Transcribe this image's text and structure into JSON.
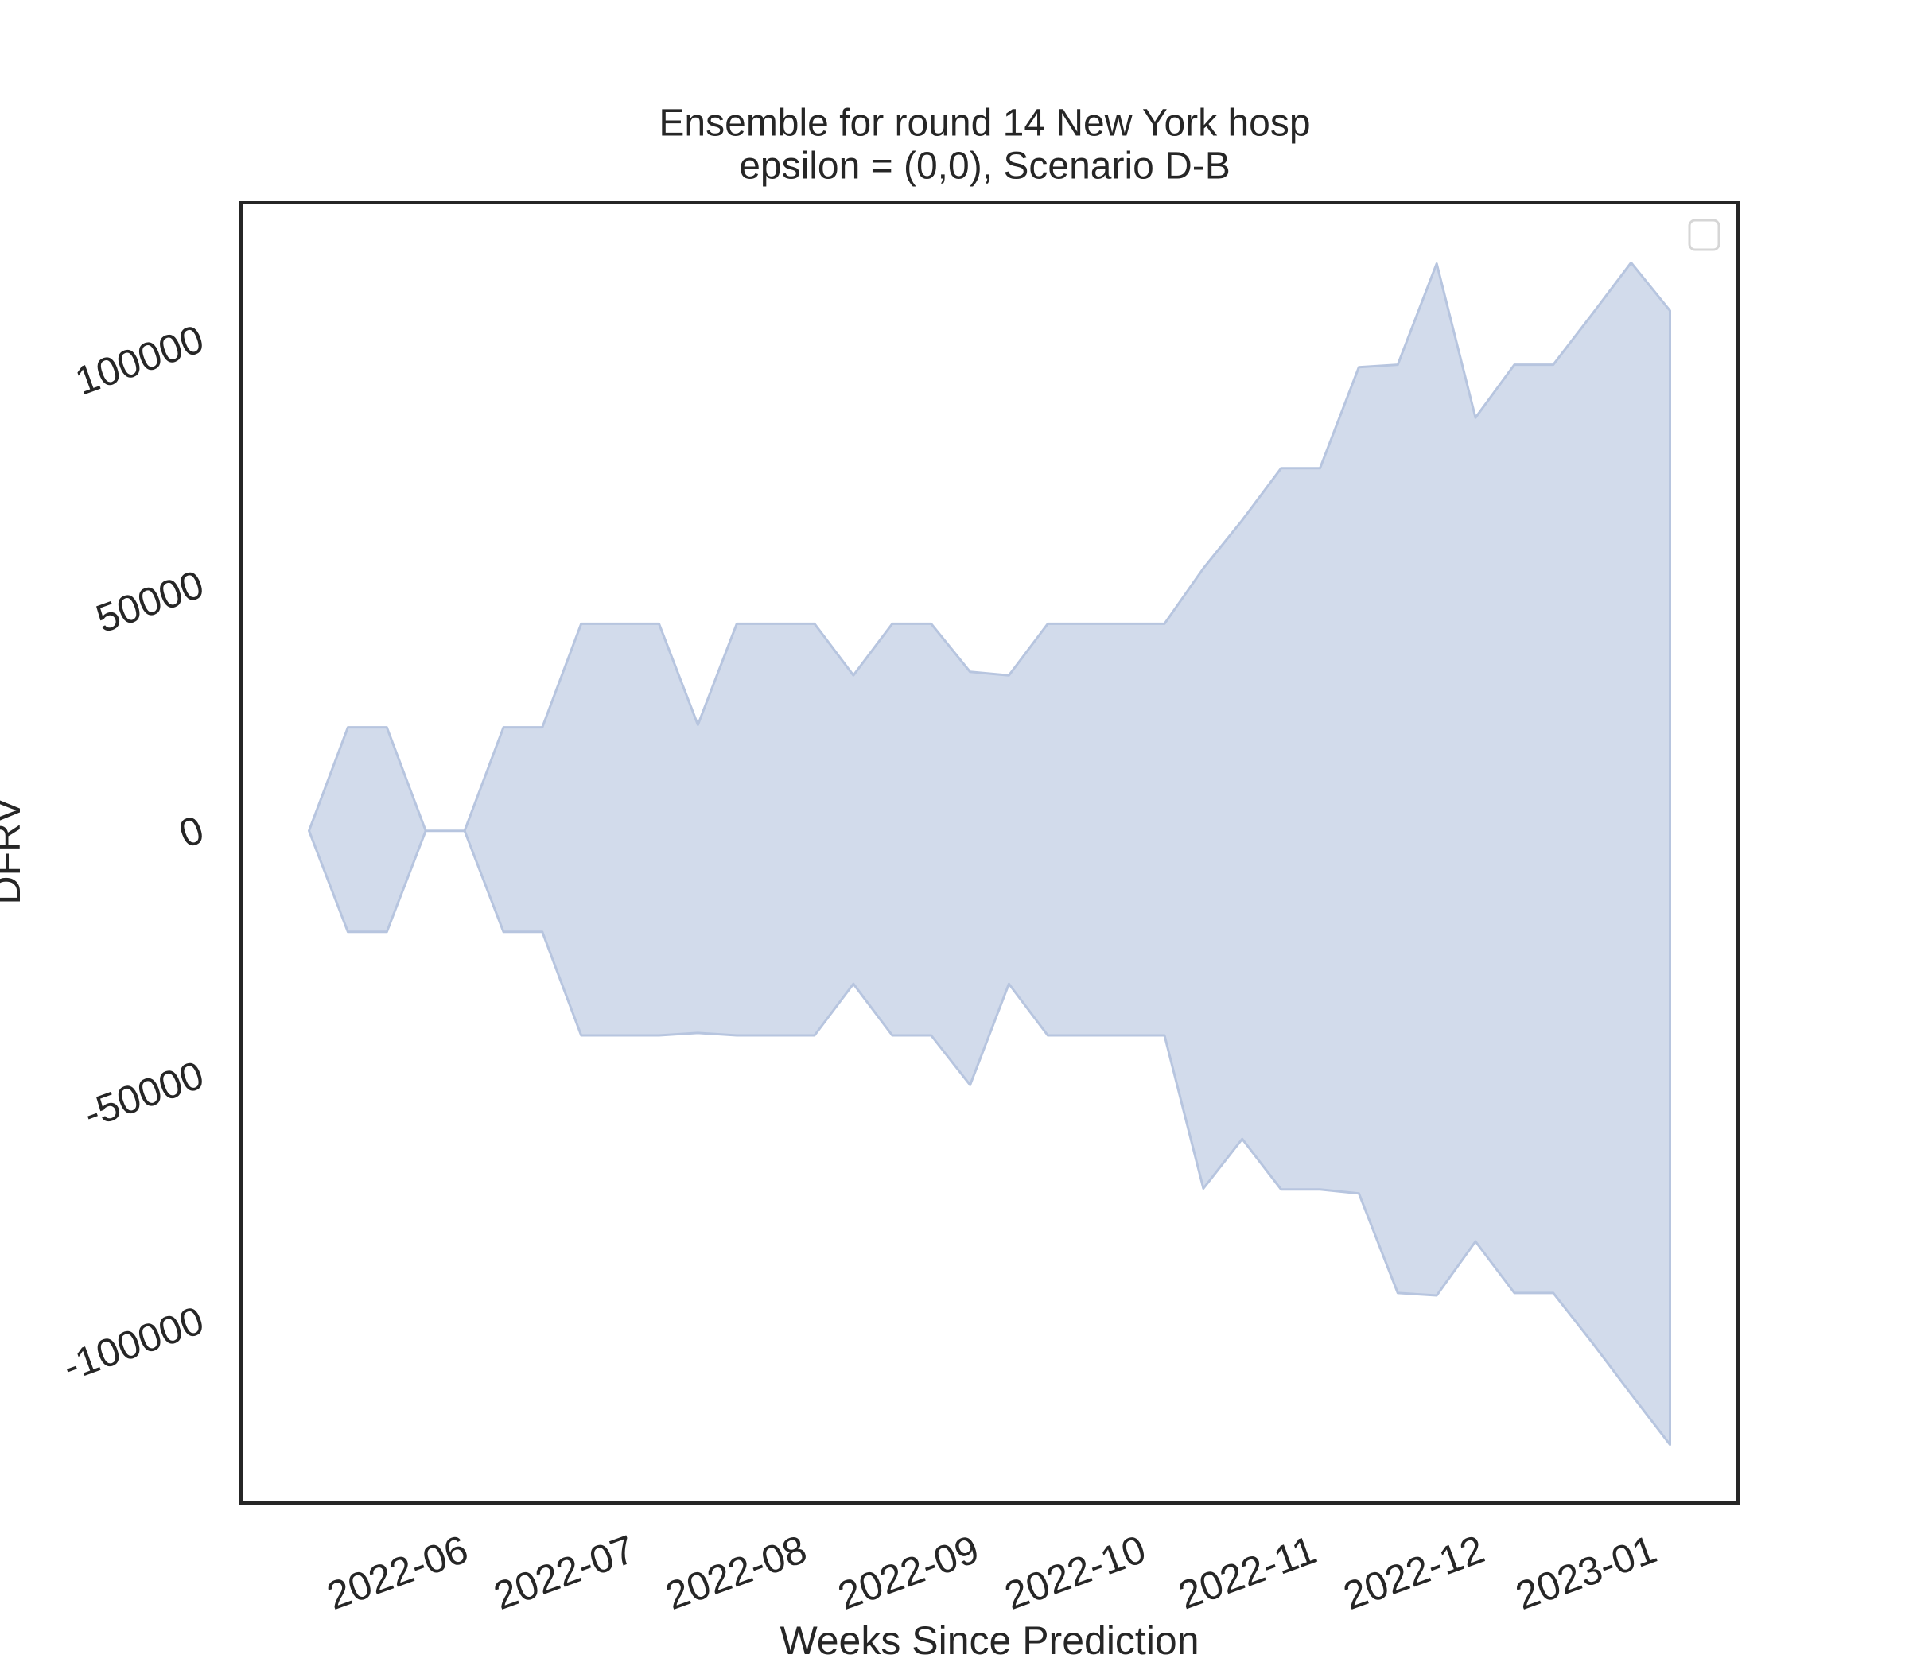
{
  "chart_data": {
    "type": "band",
    "title": "Ensemble for round 14 New York hosp",
    "subtitle": "epsilon = (0,0), Scenario D-B",
    "x_label": "Weeks Since Prediction",
    "y_label": "DFRV",
    "x": [
      0,
      1,
      2,
      3,
      4,
      5,
      6,
      7,
      8,
      9,
      10,
      11,
      12,
      13,
      14,
      15,
      16,
      17,
      18,
      19,
      20,
      21,
      22,
      23,
      24,
      25,
      26,
      27,
      28,
      29,
      30,
      31,
      32,
      33,
      34,
      35
    ],
    "upper": [
      0,
      21100,
      21100,
      0,
      0,
      21100,
      21100,
      42200,
      42200,
      42200,
      21600,
      42200,
      42200,
      42200,
      31700,
      42200,
      42200,
      32400,
      31700,
      42200,
      42200,
      42200,
      42200,
      53500,
      63300,
      73900,
      73900,
      94500,
      95000,
      115600,
      84200,
      95000,
      95000,
      105300,
      115800,
      106000
    ],
    "lower": [
      0,
      -20600,
      -20600,
      0,
      0,
      -20600,
      -20600,
      -41700,
      -41700,
      -41700,
      -41200,
      -41700,
      -41700,
      -41700,
      -31200,
      -41700,
      -41700,
      -51800,
      -31200,
      -41700,
      -41700,
      -41700,
      -41700,
      -72900,
      -62800,
      -73100,
      -73100,
      -73900,
      -94200,
      -94700,
      -83700,
      -94200,
      -94200,
      -104300,
      -114800,
      -125100
    ],
    "color": "#d2dbeb",
    "edgecolor": "#b7c5df",
    "xlim": [
      -1.75,
      36.75
    ],
    "xticks": [
      {
        "value": 2.3,
        "label": "2022-06"
      },
      {
        "value": 6.59,
        "label": "2022-07"
      },
      {
        "value": 11.01,
        "label": "2022-08"
      },
      {
        "value": 15.44,
        "label": "2022-09"
      },
      {
        "value": 19.73,
        "label": "2022-10"
      },
      {
        "value": 24.16,
        "label": "2022-11"
      },
      {
        "value": 28.44,
        "label": "2022-12"
      },
      {
        "value": 32.87,
        "label": "2023-01"
      }
    ],
    "ylim": [
      -137000,
      128000
    ],
    "yticks": [
      -100000,
      -50000,
      0,
      50000,
      100000
    ],
    "grid": false
  }
}
